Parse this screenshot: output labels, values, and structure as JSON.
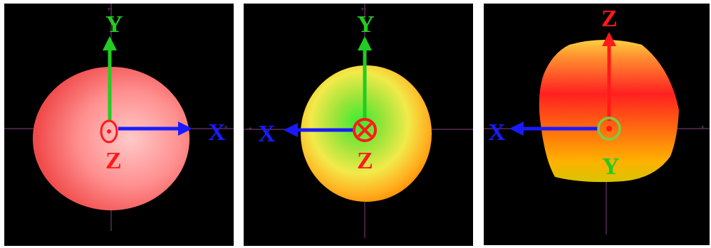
{
  "colors": {
    "background": "#000000",
    "x_axis": "#1a1aff",
    "y_axis": "#22cc22",
    "z_axis": "#ff1a1a",
    "guide_lines": "#7a3a7a"
  },
  "panels": [
    {
      "id": "front-view",
      "shape": "sphere-pink",
      "labels": {
        "x": "X",
        "y": "Y",
        "z": "Z"
      },
      "out_of_page_axis": "Z",
      "marker": "dot-in-circle"
    },
    {
      "id": "back-view",
      "shape": "sphere-yellow-green",
      "labels": {
        "x": "X",
        "y": "Y",
        "z": "Z"
      },
      "out_of_page_axis": "Z",
      "marker": "cross-in-circle"
    },
    {
      "id": "side-view",
      "shape": "blob-red-orange",
      "labels": {
        "x": "X",
        "y": "Y",
        "z": "Z"
      },
      "out_of_page_axis": "Y",
      "marker": "dot-in-circle"
    }
  ]
}
